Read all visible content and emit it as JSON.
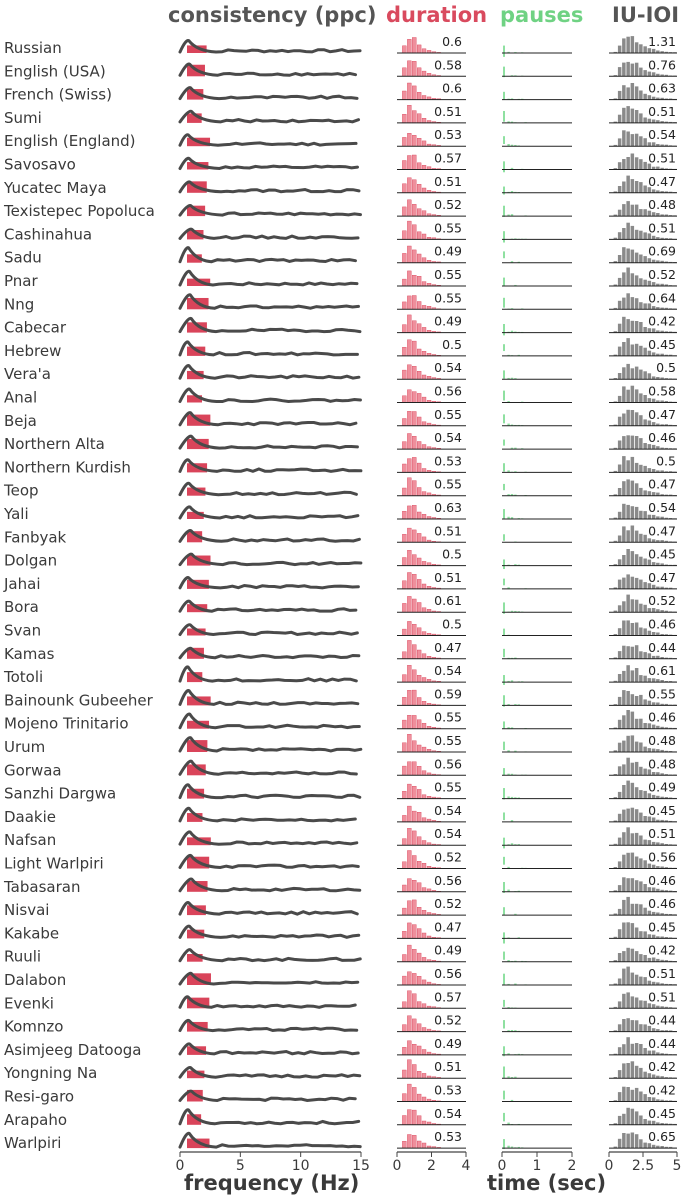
{
  "colors": {
    "consistency": "#555555",
    "duration": "#d94a5e",
    "pauses": "#6fd283",
    "iu_ioi": "#555555",
    "line": "#4a4a4a",
    "red_fill": "#d9445a",
    "duration_bar": "#ef8f9c",
    "pause_bar": "#8fe0a1",
    "ioi_bar": "#8a8a8a"
  },
  "chart_data": {
    "type": "small-multiples",
    "panels": [
      {
        "key": "consistency",
        "title": "consistency (ppc)",
        "xlabel": "frequency (Hz)",
        "xlim": [
          0,
          15
        ],
        "xticks": [
          "0",
          "5",
          "10",
          "15"
        ]
      },
      {
        "key": "duration",
        "title": "duration",
        "xlabel": "",
        "xlim": [
          0,
          4
        ],
        "xticks": [
          "0",
          "2",
          "4"
        ]
      },
      {
        "key": "pauses",
        "title": "pauses",
        "xlabel": "time (sec)",
        "xlim": [
          0,
          2
        ],
        "xticks": [
          "0",
          "1",
          "2"
        ]
      },
      {
        "key": "iu_ioi",
        "title": "IU-IOI",
        "xlabel": "",
        "xlim": [
          0,
          5
        ],
        "xticks": [
          "0",
          "2.5",
          "5"
        ]
      }
    ],
    "languages": [
      {
        "name": "Russian",
        "duration": "0.6",
        "iu_ioi": "1.31"
      },
      {
        "name": "English (USA)",
        "duration": "0.58",
        "iu_ioi": "0.76"
      },
      {
        "name": "French (Swiss)",
        "duration": "0.6",
        "iu_ioi": "0.63"
      },
      {
        "name": "Sumi",
        "duration": "0.51",
        "iu_ioi": "0.51"
      },
      {
        "name": "English (England)",
        "duration": "0.53",
        "iu_ioi": "0.54"
      },
      {
        "name": "Savosavo",
        "duration": "0.57",
        "iu_ioi": "0.51"
      },
      {
        "name": "Yucatec Maya",
        "duration": "0.51",
        "iu_ioi": "0.47"
      },
      {
        "name": "Texistepec Popoluca",
        "duration": "0.52",
        "iu_ioi": "0.48"
      },
      {
        "name": "Cashinahua",
        "duration": "0.55",
        "iu_ioi": "0.51"
      },
      {
        "name": "Sadu",
        "duration": "0.49",
        "iu_ioi": "0.69"
      },
      {
        "name": "Pnar",
        "duration": "0.55",
        "iu_ioi": "0.52"
      },
      {
        "name": "Nng",
        "duration": "0.55",
        "iu_ioi": "0.64"
      },
      {
        "name": "Cabecar",
        "duration": "0.49",
        "iu_ioi": "0.42"
      },
      {
        "name": "Hebrew",
        "duration": "0.5",
        "iu_ioi": "0.45"
      },
      {
        "name": "Vera'a",
        "duration": "0.54",
        "iu_ioi": "0.5"
      },
      {
        "name": "Anal",
        "duration": "0.56",
        "iu_ioi": "0.58"
      },
      {
        "name": "Beja",
        "duration": "0.55",
        "iu_ioi": "0.47"
      },
      {
        "name": "Northern Alta",
        "duration": "0.54",
        "iu_ioi": "0.46"
      },
      {
        "name": "Northern Kurdish",
        "duration": "0.53",
        "iu_ioi": "0.5"
      },
      {
        "name": "Teop",
        "duration": "0.55",
        "iu_ioi": "0.47"
      },
      {
        "name": "Yali",
        "duration": "0.63",
        "iu_ioi": "0.54"
      },
      {
        "name": "Fanbyak",
        "duration": "0.51",
        "iu_ioi": "0.47"
      },
      {
        "name": "Dolgan",
        "duration": "0.5",
        "iu_ioi": "0.45"
      },
      {
        "name": "Jahai",
        "duration": "0.51",
        "iu_ioi": "0.47"
      },
      {
        "name": "Bora",
        "duration": "0.61",
        "iu_ioi": "0.52"
      },
      {
        "name": "Svan",
        "duration": "0.5",
        "iu_ioi": "0.46"
      },
      {
        "name": "Kamas",
        "duration": "0.47",
        "iu_ioi": "0.44"
      },
      {
        "name": "Totoli",
        "duration": "0.54",
        "iu_ioi": "0.61"
      },
      {
        "name": "Bainounk Gubeeher",
        "duration": "0.59",
        "iu_ioi": "0.55"
      },
      {
        "name": "Mojeno Trinitario",
        "duration": "0.55",
        "iu_ioi": "0.46"
      },
      {
        "name": "Urum",
        "duration": "0.55",
        "iu_ioi": "0.48"
      },
      {
        "name": "Gorwaa",
        "duration": "0.56",
        "iu_ioi": "0.48"
      },
      {
        "name": "Sanzhi Dargwa",
        "duration": "0.55",
        "iu_ioi": "0.49"
      },
      {
        "name": "Daakie",
        "duration": "0.54",
        "iu_ioi": "0.45"
      },
      {
        "name": "Nafsan",
        "duration": "0.54",
        "iu_ioi": "0.51"
      },
      {
        "name": "Light Warlpiri",
        "duration": "0.52",
        "iu_ioi": "0.56"
      },
      {
        "name": "Tabasaran",
        "duration": "0.56",
        "iu_ioi": "0.46"
      },
      {
        "name": "Nisvai",
        "duration": "0.52",
        "iu_ioi": "0.46"
      },
      {
        "name": "Kakabe",
        "duration": "0.47",
        "iu_ioi": "0.45"
      },
      {
        "name": "Ruuli",
        "duration": "0.49",
        "iu_ioi": "0.42"
      },
      {
        "name": "Dalabon",
        "duration": "0.56",
        "iu_ioi": "0.51"
      },
      {
        "name": "Evenki",
        "duration": "0.57",
        "iu_ioi": "0.51"
      },
      {
        "name": "Komnzo",
        "duration": "0.52",
        "iu_ioi": "0.44"
      },
      {
        "name": "Asimjeeg Datooga",
        "duration": "0.49",
        "iu_ioi": "0.44"
      },
      {
        "name": "Yongning Na",
        "duration": "0.51",
        "iu_ioi": "0.42"
      },
      {
        "name": "Resi-garo",
        "duration": "0.53",
        "iu_ioi": "0.42"
      },
      {
        "name": "Arapaho",
        "duration": "0.54",
        "iu_ioi": "0.45"
      },
      {
        "name": "Warlpiri",
        "duration": "0.53",
        "iu_ioi": "0.65"
      }
    ]
  }
}
